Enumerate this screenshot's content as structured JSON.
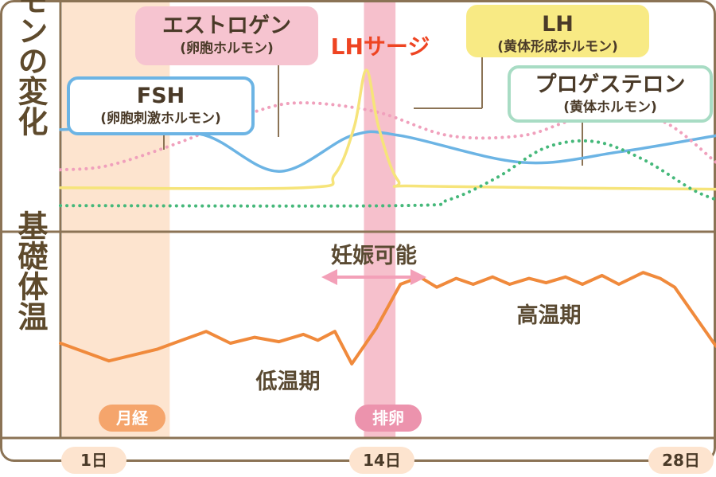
{
  "chart_data": {
    "type": "line",
    "title": "",
    "x_range_days": [
      1,
      28
    ],
    "day_ticks": [
      "1日",
      "14日",
      "28日"
    ],
    "panels": [
      {
        "label": "ホルモンの変化",
        "series": [
          {
            "id": "fsh",
            "name_main": "FSH",
            "name_sub": "(卵胞刺激ホルモン)",
            "color": "#6cb4e4",
            "style": "solid",
            "points": [
              [
                1,
                0.6
              ],
              [
                4,
                0.61
              ],
              [
                7,
                0.56
              ],
              [
                10,
                0.32
              ],
              [
                13,
                0.56
              ],
              [
                15,
                0.56
              ],
              [
                20,
                0.38
              ],
              [
                24,
                0.45
              ],
              [
                28,
                0.56
              ]
            ]
          },
          {
            "id": "estrogen",
            "name_main": "エストロゲン",
            "name_sub": "(卵胞ホルモン)",
            "color": "#f0a0bc",
            "style": "dotted",
            "points": [
              [
                1,
                0.33
              ],
              [
                3,
                0.36
              ],
              [
                6,
                0.52
              ],
              [
                9,
                0.72
              ],
              [
                11,
                0.78
              ],
              [
                14,
                0.72
              ],
              [
                17,
                0.56
              ],
              [
                20,
                0.56
              ],
              [
                22,
                0.66
              ],
              [
                24,
                0.72
              ],
              [
                26,
                0.64
              ],
              [
                28,
                0.38
              ]
            ]
          },
          {
            "id": "lh",
            "name_main": "LH",
            "name_sub": "(黄体形成ホルモン)",
            "color": "#f6e47a",
            "style": "solid",
            "points": [
              [
                1,
                0.21
              ],
              [
                11,
                0.21
              ],
              [
                12.3,
                0.3
              ],
              [
                13.1,
                0.62
              ],
              [
                13.6,
                1.0
              ],
              [
                14.1,
                0.62
              ],
              [
                14.9,
                0.26
              ],
              [
                16,
                0.22
              ],
              [
                28,
                0.2
              ]
            ]
          },
          {
            "id": "progesterone",
            "name_main": "プロゲステロン",
            "name_sub": "(黄体ホルモン)",
            "color": "#45b87a",
            "style": "dotted",
            "points": [
              [
                1,
                0.09
              ],
              [
                15,
                0.09
              ],
              [
                17,
                0.13
              ],
              [
                19,
                0.28
              ],
              [
                21,
                0.48
              ],
              [
                23,
                0.52
              ],
              [
                25,
                0.4
              ],
              [
                27,
                0.2
              ],
              [
                28,
                0.13
              ]
            ]
          }
        ],
        "annotations": [
          {
            "text": "LHサージ",
            "color": "#ee4422"
          }
        ]
      },
      {
        "label": "基礎体温",
        "series": [
          {
            "id": "bbt",
            "color": "#f08a3c",
            "style": "solid",
            "points": [
              [
                1,
                0.4
              ],
              [
                3,
                0.28
              ],
              [
                5,
                0.36
              ],
              [
                6,
                0.42
              ],
              [
                7,
                0.48
              ],
              [
                8,
                0.4
              ],
              [
                9,
                0.44
              ],
              [
                10,
                0.41
              ],
              [
                11,
                0.46
              ],
              [
                11.6,
                0.42
              ],
              [
                12.3,
                0.48
              ],
              [
                13,
                0.26
              ],
              [
                14,
                0.5
              ],
              [
                15,
                0.8
              ],
              [
                15.8,
                0.85
              ],
              [
                16.5,
                0.78
              ],
              [
                17.3,
                0.84
              ],
              [
                18,
                0.8
              ],
              [
                18.8,
                0.85
              ],
              [
                19.5,
                0.8
              ],
              [
                20.3,
                0.84
              ],
              [
                21,
                0.81
              ],
              [
                21.8,
                0.85
              ],
              [
                22.5,
                0.8
              ],
              [
                23.3,
                0.86
              ],
              [
                24,
                0.8
              ],
              [
                25,
                0.88
              ],
              [
                25.7,
                0.84
              ],
              [
                26.3,
                0.78
              ],
              [
                28,
                0.38
              ]
            ]
          }
        ],
        "phase_labels": [
          "低温期",
          "高温期"
        ],
        "fertile_window": {
          "label": "妊娠可能",
          "start_day": 13,
          "end_day": 15
        }
      }
    ],
    "bands": [
      {
        "label": "月経",
        "start_day": 1,
        "end_day": 5.5,
        "color": "#fde4cf",
        "pill_color": "#f5a56c"
      },
      {
        "label": "排卵",
        "start_day": 13.5,
        "end_day": 14.8,
        "color": "#f6c0cc",
        "pill_color": "#ec93ad"
      }
    ]
  }
}
